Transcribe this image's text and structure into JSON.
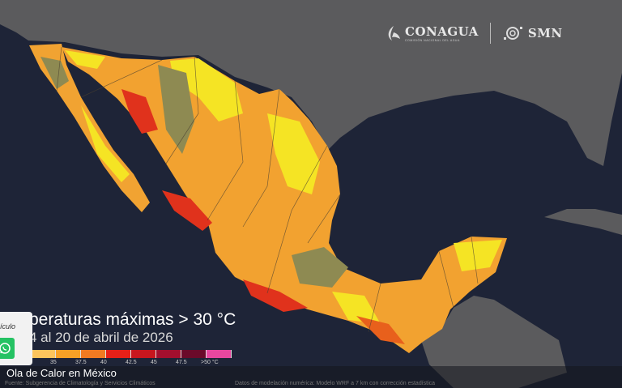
{
  "logos": {
    "conagua": "CONAGUA",
    "conagua_sub": "COMISIÓN NACIONAL DEL AGUA",
    "smn": "SMN"
  },
  "map": {
    "title": "peraturas máximas > 30 °C",
    "subtitle": "4 al 20 de abril de 2026",
    "legend": {
      "colors": [
        "#fcc45c",
        "#f6a026",
        "#f07a22",
        "#e62018",
        "#c8161e",
        "#a30f2e",
        "#6b0a2a",
        "#e8479f"
      ],
      "labels": [
        "35",
        "37.5",
        "40",
        "42.5",
        "45",
        "47.5",
        ">50 °C"
      ]
    },
    "source": "Fuente: Subgerencia de Climatología y Servicios Climáticos",
    "model_note": "Datos de modelación numérica: Modelo WRF a 7 km con corrección estadística"
  },
  "caption": "Ola de Calor en México",
  "popup": {
    "text": "ículo",
    "share_icon": "whatsapp-icon",
    "share_color": "#25c263"
  }
}
